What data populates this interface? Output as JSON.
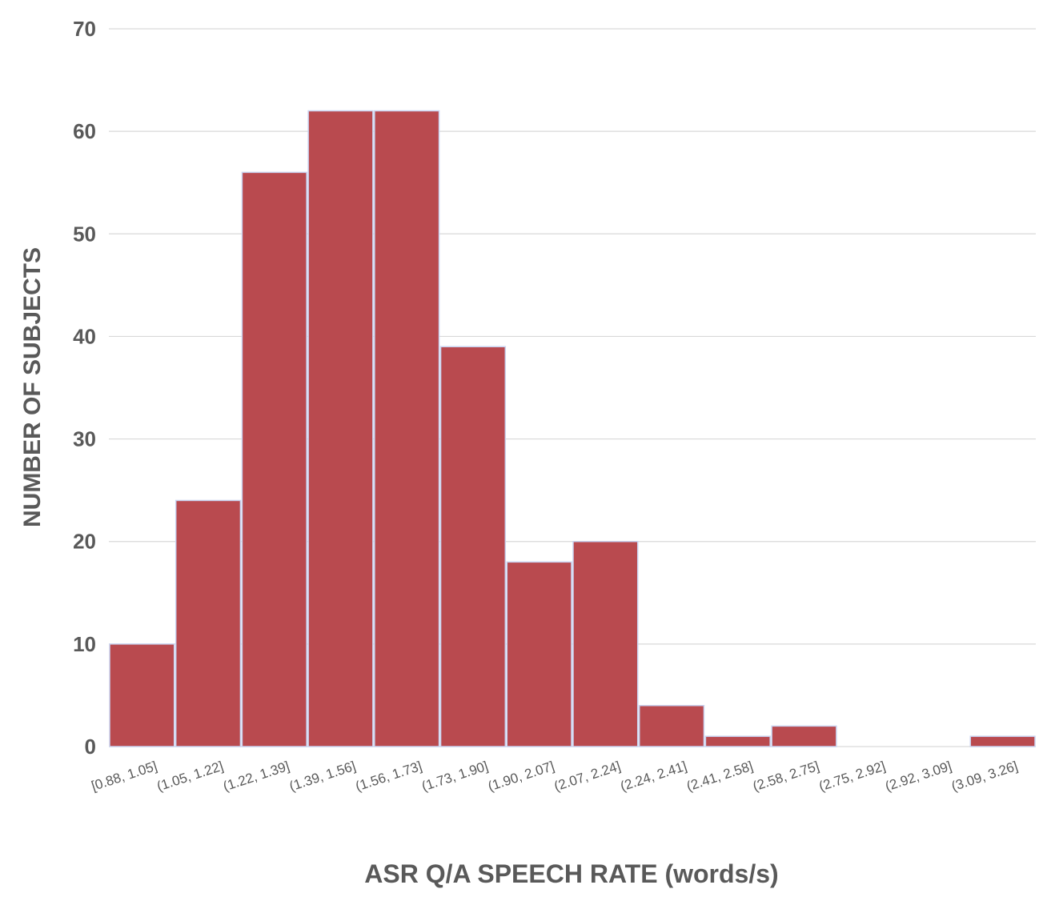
{
  "chart_data": {
    "type": "bar",
    "title": "",
    "xlabel": "ASR Q/A SPEECH RATE (words/s)",
    "ylabel": "NUMBER OF SUBJECTS",
    "categories": [
      "[0.88, 1.05]",
      "(1.05, 1.22]",
      "(1.22, 1.39]",
      "(1.39, 1.56]",
      "(1.56, 1.73]",
      "(1.73, 1.90]",
      "(1.90, 2.07]",
      "(2.07, 2.24]",
      "(2.24, 2.41]",
      "(2.41, 2.58]",
      "(2.58, 2.75]",
      "(2.75, 2.92]",
      "(2.92, 3.09]",
      "(3.09, 3.26]"
    ],
    "values": [
      10,
      24,
      56,
      62,
      62,
      39,
      18,
      20,
      4,
      1,
      2,
      0,
      0,
      1
    ],
    "ylim": [
      0,
      70
    ],
    "yticks": [
      0,
      10,
      20,
      30,
      40,
      50,
      60,
      70
    ],
    "grid": true,
    "legend": "none",
    "colors": {
      "bar": "#b94a4f",
      "bar_edge": "#c9d3f0",
      "text": "#595959",
      "grid": "#d9d9d9"
    }
  }
}
